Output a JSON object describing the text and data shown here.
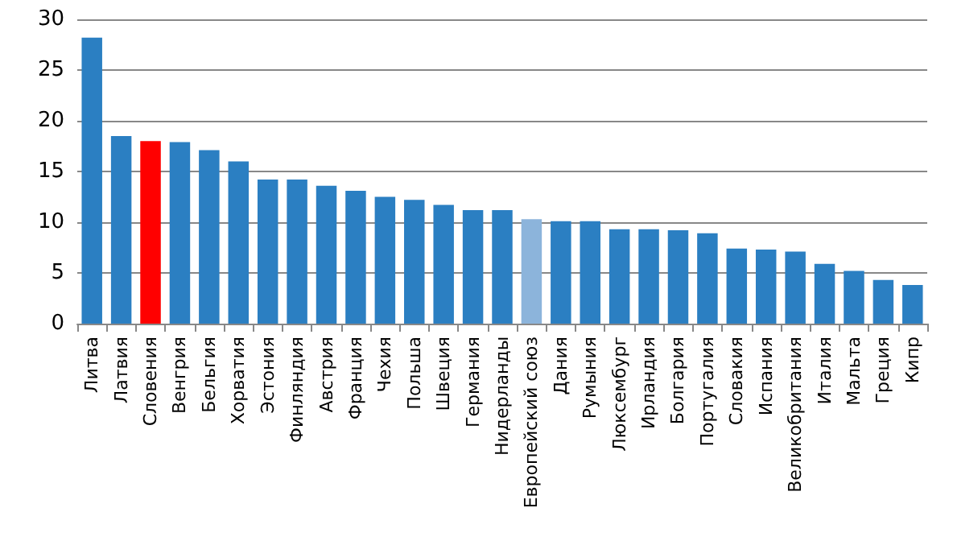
{
  "chart_data": {
    "type": "bar",
    "categories": [
      "Литва",
      "Латвия",
      "Словения",
      "Венгрия",
      "Бельгия",
      "Хорватия",
      "Эстония",
      "Финляндия",
      "Австрия",
      "Франция",
      "Чехия",
      "Польша",
      "Швеция",
      "Германия",
      "Нидерланды",
      "Европейский союз",
      "Дания",
      "Румыния",
      "Люксембург",
      "Ирландия",
      "Болгария",
      "Португалия",
      "Словакия",
      "Испания",
      "Великобритания",
      "Италия",
      "Мальта",
      "Греция",
      "Кипр"
    ],
    "values": [
      28.2,
      18.5,
      18.0,
      17.9,
      17.1,
      16.0,
      14.2,
      14.2,
      13.6,
      13.1,
      12.5,
      12.2,
      11.7,
      11.2,
      11.2,
      10.3,
      10.1,
      10.1,
      9.3,
      9.3,
      9.2,
      8.9,
      7.4,
      7.3,
      7.1,
      5.9,
      5.2,
      4.3,
      3.8
    ],
    "colors": [
      "#2b7fc2",
      "#2b7fc2",
      "#ff0000",
      "#2b7fc2",
      "#2b7fc2",
      "#2b7fc2",
      "#2b7fc2",
      "#2b7fc2",
      "#2b7fc2",
      "#2b7fc2",
      "#2b7fc2",
      "#2b7fc2",
      "#2b7fc2",
      "#2b7fc2",
      "#2b7fc2",
      "#8cb4db",
      "#2b7fc2",
      "#2b7fc2",
      "#2b7fc2",
      "#2b7fc2",
      "#2b7fc2",
      "#2b7fc2",
      "#2b7fc2",
      "#2b7fc2",
      "#2b7fc2",
      "#2b7fc2",
      "#2b7fc2",
      "#2b7fc2",
      "#2b7fc2"
    ],
    "ylim": [
      0,
      30
    ],
    "yticks": [
      0,
      5,
      10,
      15,
      20,
      25,
      30
    ],
    "grid": "y"
  }
}
